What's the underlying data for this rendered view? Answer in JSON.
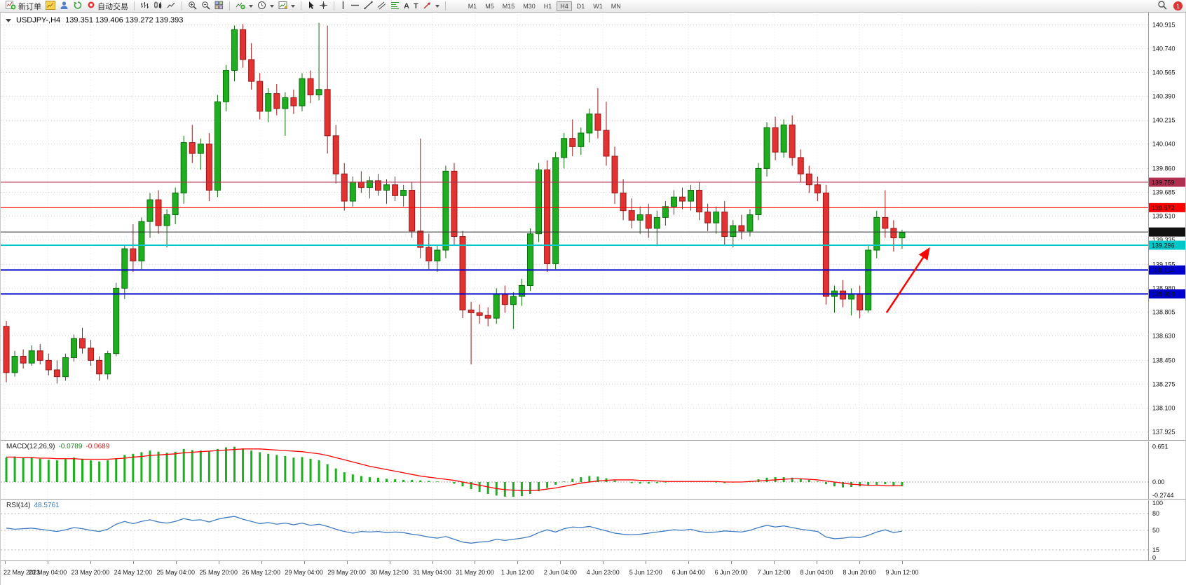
{
  "toolbar": {
    "new_order_label": "新订单",
    "autotrade_label": "自动交易",
    "timeframes": [
      "M1",
      "M5",
      "M15",
      "M30",
      "H1",
      "H4",
      "D1",
      "W1",
      "MN"
    ],
    "active_timeframe": "H4",
    "notification_count": "1",
    "glyphs": {
      "text_tool": "A",
      "label_tool": "T"
    }
  },
  "chart_data": {
    "type": "candlestick",
    "title": "USDJPY-,H4",
    "ohlc_readout_text": "139.351 139.406 139.272 139.393",
    "colors": {
      "up": "#1fae1f",
      "up_border": "#0c6e0c",
      "down": "#e23232",
      "down_border": "#9a1717",
      "grid": "#cfcfcf",
      "macd_hist": "#1fae1f",
      "macd_signal": "#ff0000",
      "rsi_line": "#3f7cc4",
      "current_price_line": "#333333"
    },
    "price_axis": {
      "min": 137.865,
      "max": 141.005,
      "ticks": [
        "140.915",
        "140.740",
        "140.565",
        "140.390",
        "140.215",
        "140.040",
        "139.860",
        "139.685",
        "139.510",
        "139.335",
        "139.155",
        "138.980",
        "138.805",
        "138.630",
        "138.450",
        "138.275",
        "138.100",
        "137.925"
      ]
    },
    "x_labels": [
      "22 May 2023",
      "23 May 04:00",
      "23 May 20:00",
      "24 May 12:00",
      "25 May 04:00",
      "25 May 20:00",
      "26 May 12:00",
      "29 May 04:00",
      "29 May 20:00",
      "30 May 12:00",
      "31 May 04:00",
      "31 May 20:00",
      "1 Jun 12:00",
      "2 Jun 04:00",
      "4 Jun 23:00",
      "5 Jun 12:00",
      "6 Jun 04:00",
      "6 Jun 20:00",
      "7 Jun 12:00",
      "8 Jun 04:00",
      "8 Jun 20:00",
      "9 Jun 12:00"
    ],
    "candles": [
      [
        138.7,
        138.74,
        138.29,
        138.36
      ],
      [
        138.36,
        138.52,
        138.33,
        138.48
      ],
      [
        138.48,
        138.53,
        138.39,
        138.43
      ],
      [
        138.43,
        138.56,
        138.41,
        138.52
      ],
      [
        138.52,
        138.57,
        138.42,
        138.45
      ],
      [
        138.45,
        138.5,
        138.34,
        138.38
      ],
      [
        138.38,
        138.45,
        138.28,
        138.33
      ],
      [
        138.33,
        138.5,
        138.3,
        138.47
      ],
      [
        138.47,
        138.64,
        138.44,
        138.61
      ],
      [
        138.61,
        138.69,
        138.5,
        138.54
      ],
      [
        138.54,
        138.6,
        138.41,
        138.45
      ],
      [
        138.45,
        138.48,
        138.3,
        138.35
      ],
      [
        138.35,
        138.52,
        138.31,
        138.5
      ],
      [
        138.5,
        139.02,
        138.48,
        138.98
      ],
      [
        138.98,
        139.3,
        138.9,
        139.27
      ],
      [
        139.27,
        139.45,
        139.1,
        139.18
      ],
      [
        139.18,
        139.5,
        139.12,
        139.47
      ],
      [
        139.47,
        139.68,
        139.35,
        139.63
      ],
      [
        139.63,
        139.7,
        139.38,
        139.44
      ],
      [
        139.44,
        139.56,
        139.28,
        139.52
      ],
      [
        139.52,
        139.72,
        139.45,
        139.68
      ],
      [
        139.68,
        140.1,
        139.6,
        140.05
      ],
      [
        140.05,
        140.18,
        139.9,
        139.97
      ],
      [
        139.97,
        140.08,
        139.85,
        140.04
      ],
      [
        140.04,
        140.12,
        139.62,
        139.7
      ],
      [
        139.7,
        140.4,
        139.65,
        140.35
      ],
      [
        140.35,
        140.62,
        140.28,
        140.58
      ],
      [
        140.58,
        140.91,
        140.5,
        140.88
      ],
      [
        140.88,
        140.92,
        140.6,
        140.66
      ],
      [
        140.66,
        140.78,
        140.44,
        140.5
      ],
      [
        140.5,
        140.56,
        140.22,
        140.28
      ],
      [
        140.28,
        140.45,
        140.2,
        140.41
      ],
      [
        140.41,
        140.48,
        140.25,
        140.3
      ],
      [
        140.3,
        140.42,
        140.1,
        140.38
      ],
      [
        140.38,
        140.44,
        140.26,
        140.32
      ],
      [
        140.32,
        140.56,
        140.28,
        140.52
      ],
      [
        140.52,
        140.58,
        140.34,
        140.4
      ],
      [
        140.4,
        140.93,
        140.36,
        140.44
      ],
      [
        140.44,
        140.91,
        139.97,
        140.1
      ],
      [
        140.1,
        140.18,
        139.75,
        139.82
      ],
      [
        139.82,
        139.9,
        139.55,
        139.62
      ],
      [
        139.62,
        139.8,
        139.58,
        139.76
      ],
      [
        139.76,
        139.84,
        139.68,
        139.72
      ],
      [
        139.72,
        139.8,
        139.64,
        139.77
      ],
      [
        139.77,
        139.82,
        139.66,
        139.7
      ],
      [
        139.7,
        139.78,
        139.6,
        139.74
      ],
      [
        139.74,
        139.8,
        139.62,
        139.66
      ],
      [
        139.66,
        139.74,
        139.58,
        139.7
      ],
      [
        139.7,
        139.76,
        139.35,
        139.4
      ],
      [
        139.4,
        140.08,
        139.2,
        139.28
      ],
      [
        139.28,
        139.38,
        139.12,
        139.18
      ],
      [
        139.18,
        139.3,
        139.1,
        139.26
      ],
      [
        139.26,
        139.88,
        139.2,
        139.84
      ],
      [
        139.84,
        139.9,
        139.3,
        139.36
      ],
      [
        139.36,
        139.4,
        138.76,
        138.82
      ],
      [
        138.82,
        138.88,
        138.42,
        138.8
      ],
      [
        138.8,
        138.86,
        138.72,
        138.78
      ],
      [
        138.78,
        138.84,
        138.7,
        138.76
      ],
      [
        138.76,
        138.98,
        138.72,
        138.94
      ],
      [
        138.94,
        139.0,
        138.8,
        138.86
      ],
      [
        138.86,
        138.95,
        138.68,
        138.92
      ],
      [
        138.92,
        139.05,
        138.85,
        139.0
      ],
      [
        139.0,
        139.42,
        138.96,
        139.38
      ],
      [
        139.38,
        139.9,
        139.32,
        139.85
      ],
      [
        139.85,
        139.92,
        139.1,
        139.16
      ],
      [
        139.16,
        139.98,
        139.12,
        139.94
      ],
      [
        139.94,
        140.12,
        139.86,
        140.08
      ],
      [
        140.08,
        140.22,
        139.95,
        140.02
      ],
      [
        140.02,
        140.16,
        139.96,
        140.12
      ],
      [
        140.12,
        140.3,
        140.05,
        140.26
      ],
      [
        140.26,
        140.45,
        140.08,
        140.14
      ],
      [
        140.14,
        140.35,
        139.88,
        139.95
      ],
      [
        139.95,
        140.02,
        139.6,
        139.68
      ],
      [
        139.68,
        139.78,
        139.48,
        139.55
      ],
      [
        139.55,
        139.64,
        139.42,
        139.48
      ],
      [
        139.48,
        139.58,
        139.38,
        139.52
      ],
      [
        139.52,
        139.6,
        139.35,
        139.42
      ],
      [
        139.42,
        139.55,
        139.3,
        139.5
      ],
      [
        139.5,
        139.62,
        139.44,
        139.58
      ],
      [
        139.58,
        139.7,
        139.52,
        139.65
      ],
      [
        139.65,
        139.72,
        139.56,
        139.62
      ],
      [
        139.62,
        139.74,
        139.55,
        139.7
      ],
      [
        139.7,
        139.76,
        139.48,
        139.54
      ],
      [
        139.54,
        139.6,
        139.4,
        139.46
      ],
      [
        139.46,
        139.58,
        139.38,
        139.54
      ],
      [
        139.54,
        139.62,
        139.3,
        139.36
      ],
      [
        139.36,
        139.48,
        139.28,
        139.44
      ],
      [
        139.44,
        139.52,
        139.34,
        139.4
      ],
      [
        139.4,
        139.56,
        139.36,
        139.52
      ],
      [
        139.52,
        139.9,
        139.48,
        139.86
      ],
      [
        139.86,
        140.2,
        139.8,
        140.16
      ],
      [
        140.16,
        140.24,
        139.92,
        139.98
      ],
      [
        139.98,
        140.22,
        139.94,
        140.18
      ],
      [
        140.18,
        140.25,
        139.88,
        139.94
      ],
      [
        139.94,
        140.0,
        139.76,
        139.82
      ],
      [
        139.82,
        139.88,
        139.68,
        139.74
      ],
      [
        139.74,
        139.8,
        139.62,
        139.68
      ],
      [
        139.68,
        139.74,
        138.86,
        138.92
      ],
      [
        138.92,
        139.0,
        138.8,
        138.96
      ],
      [
        138.96,
        139.04,
        138.84,
        138.9
      ],
      [
        138.9,
        138.98,
        138.78,
        138.94
      ],
      [
        138.94,
        139.0,
        138.76,
        138.82
      ],
      [
        138.82,
        139.3,
        138.8,
        139.26
      ],
      [
        139.26,
        139.55,
        139.2,
        139.5
      ],
      [
        139.5,
        139.7,
        139.35,
        139.42
      ],
      [
        139.42,
        139.48,
        139.25,
        139.35
      ],
      [
        139.35,
        139.41,
        139.27,
        139.39
      ]
    ],
    "hlines": [
      {
        "price": 139.759,
        "label": "139.759",
        "color": "#b03052",
        "width": 1,
        "label_text_color": "#ffffff"
      },
      {
        "price": 139.572,
        "label": "139.572",
        "color": "#ff0000",
        "width": 1,
        "label_text_color": "#ffffff"
      },
      {
        "price": 139.296,
        "label": "139.296",
        "color": "#00c8c8",
        "width": 2,
        "label_text_color": "#000000"
      },
      {
        "price": 139.114,
        "label": "139.114",
        "color": "#0000cc",
        "width": 2,
        "label_text_color": "#ffffff"
      },
      {
        "price": 138.938,
        "label": "138.938",
        "color": "#0000cc",
        "width": 2,
        "label_text_color": "#ffffff"
      }
    ],
    "current_price": "139.393",
    "arrow": {
      "color": "#ff0000",
      "x1_frac": 0.772,
      "price1": 138.8,
      "x2_frac": 0.809,
      "price2": 139.27
    },
    "macd": {
      "label": "MACD(12,26,9)",
      "main_value": "-0.0789",
      "signal_value": "-0.0689",
      "scale_ticks": [
        "0.651",
        "0.00",
        "-0.2744"
      ],
      "range": {
        "min": -0.31,
        "max": 0.75
      },
      "histogram": [
        0.45,
        0.47,
        0.44,
        0.46,
        0.43,
        0.41,
        0.4,
        0.42,
        0.45,
        0.43,
        0.4,
        0.38,
        0.4,
        0.44,
        0.5,
        0.52,
        0.55,
        0.58,
        0.56,
        0.54,
        0.56,
        0.61,
        0.59,
        0.58,
        0.56,
        0.61,
        0.64,
        0.651,
        0.62,
        0.58,
        0.55,
        0.52,
        0.5,
        0.48,
        0.45,
        0.46,
        0.43,
        0.4,
        0.33,
        0.25,
        0.18,
        0.14,
        0.11,
        0.09,
        0.08,
        0.06,
        0.05,
        0.04,
        0.04,
        0.03,
        0.02,
        0.01,
        0.0,
        -0.03,
        -0.08,
        -0.13,
        -0.18,
        -0.22,
        -0.25,
        -0.27,
        -0.2744,
        -0.26,
        -0.22,
        -0.17,
        -0.11,
        -0.05,
        0.01,
        0.06,
        0.09,
        0.11,
        0.1,
        0.07,
        0.03,
        0.0,
        -0.02,
        -0.03,
        -0.03,
        -0.02,
        -0.01,
        0.0,
        0.01,
        0.01,
        0.01,
        0.0,
        -0.01,
        -0.02,
        -0.01,
        0.0,
        0.02,
        0.05,
        0.08,
        0.09,
        0.09,
        0.08,
        0.06,
        0.04,
        0.01,
        -0.04,
        -0.08,
        -0.1,
        -0.09,
        -0.08,
        -0.07,
        -0.05,
        -0.04,
        -0.06,
        -0.0789
      ],
      "signal": [
        0.46,
        0.46,
        0.45,
        0.45,
        0.44,
        0.44,
        0.43,
        0.43,
        0.43,
        0.42,
        0.42,
        0.42,
        0.42,
        0.43,
        0.44,
        0.46,
        0.47,
        0.49,
        0.5,
        0.51,
        0.52,
        0.54,
        0.55,
        0.56,
        0.57,
        0.58,
        0.59,
        0.6,
        0.61,
        0.61,
        0.61,
        0.6,
        0.59,
        0.58,
        0.57,
        0.56,
        0.54,
        0.52,
        0.49,
        0.45,
        0.41,
        0.37,
        0.33,
        0.29,
        0.26,
        0.23,
        0.2,
        0.17,
        0.14,
        0.11,
        0.09,
        0.07,
        0.05,
        0.03,
        0.0,
        -0.03,
        -0.06,
        -0.09,
        -0.12,
        -0.14,
        -0.15,
        -0.16,
        -0.16,
        -0.15,
        -0.13,
        -0.11,
        -0.08,
        -0.05,
        -0.02,
        0.0,
        0.02,
        0.03,
        0.04,
        0.04,
        0.04,
        0.03,
        0.03,
        0.02,
        0.01,
        0.01,
        0.01,
        0.01,
        0.01,
        0.01,
        0.01,
        0.0,
        0.0,
        0.0,
        0.01,
        0.02,
        0.03,
        0.04,
        0.05,
        0.06,
        0.06,
        0.05,
        0.04,
        0.02,
        0.0,
        -0.02,
        -0.04,
        -0.05,
        -0.06,
        -0.06,
        -0.07,
        -0.07,
        -0.0689
      ]
    },
    "rsi": {
      "label": "RSI(14)",
      "value": "48.5761",
      "levels": [
        "100",
        "80",
        "50",
        "15",
        "0"
      ],
      "level_lines": [
        80,
        50,
        15
      ],
      "range": {
        "min": -4,
        "max": 104
      },
      "values": [
        54,
        52,
        53,
        54,
        52,
        50,
        48,
        51,
        55,
        53,
        50,
        48,
        52,
        61,
        66,
        62,
        66,
        69,
        65,
        63,
        66,
        71,
        68,
        69,
        65,
        70,
        73,
        75,
        70,
        66,
        62,
        64,
        61,
        63,
        60,
        63,
        59,
        61,
        57,
        52,
        48,
        45,
        48,
        47,
        48,
        46,
        47,
        46,
        43,
        41,
        38,
        36,
        39,
        34,
        29,
        27,
        29,
        30,
        34,
        32,
        34,
        36,
        39,
        46,
        51,
        47,
        53,
        56,
        55,
        57,
        53,
        49,
        45,
        43,
        42,
        43,
        45,
        47,
        49,
        51,
        50,
        52,
        48,
        46,
        47,
        49,
        48,
        47,
        50,
        55,
        59,
        56,
        58,
        55,
        52,
        50,
        48,
        38,
        35,
        36,
        38,
        37,
        41,
        47,
        51,
        46,
        48.5761
      ]
    }
  }
}
